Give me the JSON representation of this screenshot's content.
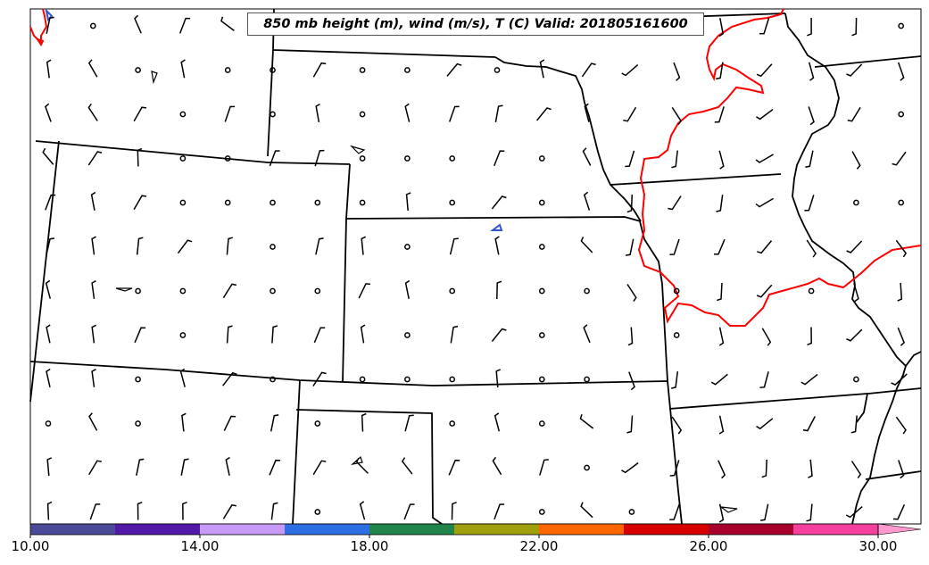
{
  "map": {
    "title": "850 mb height (m), wind (m/s), T (C) Valid: 201805161600",
    "highlight_contour_color": "#ff0000",
    "small_contour_color": "#3355cc"
  },
  "colorbar": {
    "tick_labels": [
      "10.00",
      "14.00",
      "18.00",
      "22.00",
      "26.00",
      "30.00"
    ],
    "bins": [
      {
        "from": 10,
        "to": 12,
        "color": "#4b4a99"
      },
      {
        "from": 12,
        "to": 14,
        "color": "#5218a8"
      },
      {
        "from": 14,
        "to": 16,
        "color": "#c79af7"
      },
      {
        "from": 16,
        "to": 18,
        "color": "#2d6ee3"
      },
      {
        "from": 18,
        "to": 20,
        "color": "#21844a"
      },
      {
        "from": 20,
        "to": 22,
        "color": "#a0a00f"
      },
      {
        "from": 22,
        "to": 24,
        "color": "#ff6600"
      },
      {
        "from": 24,
        "to": 26,
        "color": "#d60000"
      },
      {
        "from": 26,
        "to": 28,
        "color": "#a8002c"
      },
      {
        "from": 28,
        "to": 30,
        "color": "#f5409e"
      },
      {
        "from": 30,
        "to": 31,
        "color": "#ff99d0"
      }
    ]
  }
}
